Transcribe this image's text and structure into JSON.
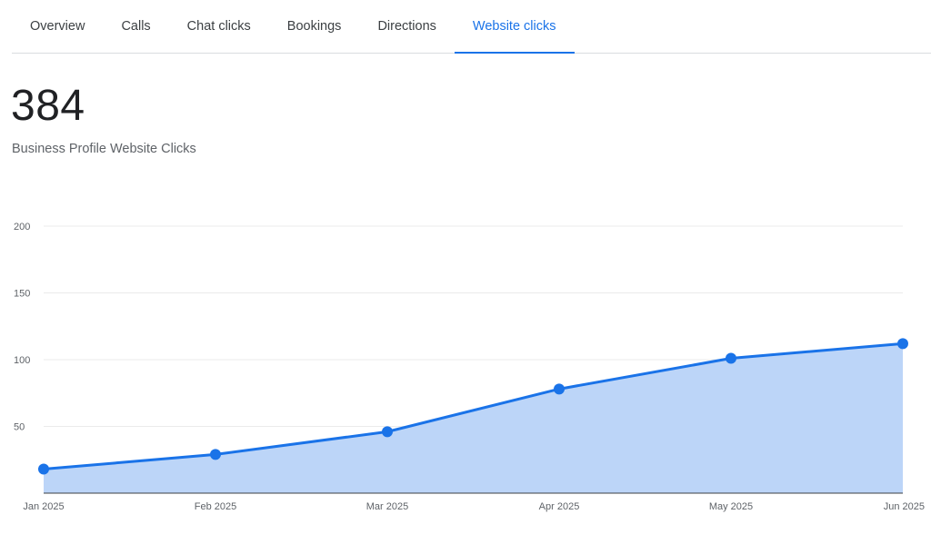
{
  "tabs": [
    {
      "label": "Overview",
      "active": false
    },
    {
      "label": "Calls",
      "active": false
    },
    {
      "label": "Chat clicks",
      "active": false
    },
    {
      "label": "Bookings",
      "active": false
    },
    {
      "label": "Directions",
      "active": false
    },
    {
      "label": "Website clicks",
      "active": true
    }
  ],
  "metric": {
    "value": "384",
    "label": "Business Profile Website Clicks"
  },
  "colors": {
    "accent": "#1a73e8",
    "area_fill": "#bcd5f8",
    "gridline": "#ebebeb",
    "text_secondary": "#5f6368"
  },
  "chart_data": {
    "type": "area",
    "x": [
      "Jan 2025",
      "Feb 2025",
      "Mar 2025",
      "Apr 2025",
      "May 2025",
      "Jun 2025"
    ],
    "series": [
      {
        "values": [
          18,
          29,
          46,
          78,
          101,
          112
        ]
      }
    ],
    "yticks": [
      50,
      100,
      150,
      200
    ],
    "ylim": [
      0,
      200
    ],
    "grid": true,
    "legend": "none",
    "markers": true
  }
}
